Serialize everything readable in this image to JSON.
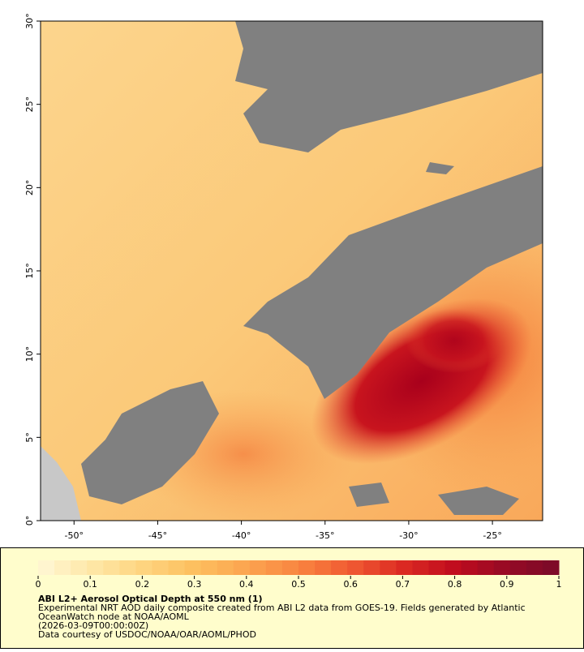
{
  "map": {
    "xlim": [
      -52,
      -22
    ],
    "ylim": [
      0,
      30
    ],
    "xticks": [
      {
        "value": -50,
        "label": "-50°"
      },
      {
        "value": -45,
        "label": "-45°"
      },
      {
        "value": -40,
        "label": "-40°"
      },
      {
        "value": -35,
        "label": "-35°"
      },
      {
        "value": -30,
        "label": "-30°"
      },
      {
        "value": -25,
        "label": "-25°"
      }
    ],
    "yticks": [
      {
        "value": 0,
        "label": "0°"
      },
      {
        "value": 5,
        "label": "5°"
      },
      {
        "value": 10,
        "label": "10°"
      },
      {
        "value": 15,
        "label": "15°"
      },
      {
        "value": 20,
        "label": "20°"
      },
      {
        "value": 25,
        "label": "25°"
      },
      {
        "value": 30,
        "label": "30°"
      }
    ]
  },
  "colorbar": {
    "lim": [
      0,
      1
    ],
    "ticks": [
      0,
      0.1,
      0.2,
      0.3,
      0.4,
      0.5,
      0.6,
      0.7,
      0.8,
      0.9,
      1
    ],
    "colors": [
      "#fff7d6",
      "#fee8a8",
      "#fed580",
      "#fdbf5f",
      "#fca550",
      "#f98540",
      "#f05a32",
      "#dc2a22",
      "#c00c1e",
      "#960a25",
      "#7a0a28"
    ]
  },
  "caption": {
    "title": "ABI L2+ Aerosol Optical Depth at 550 nm (1)",
    "lines": [
      "Experimental NRT AOD daily composite created from ABI L2 data from GOES-19. Fields generated by Atlantic",
      "OceanWatch node at NOAA/AOML",
      "(2026-03-09T00:00:00Z)",
      "Data courtesy of USDOC/NOAA/OAR/AOML/PHOD"
    ]
  }
}
